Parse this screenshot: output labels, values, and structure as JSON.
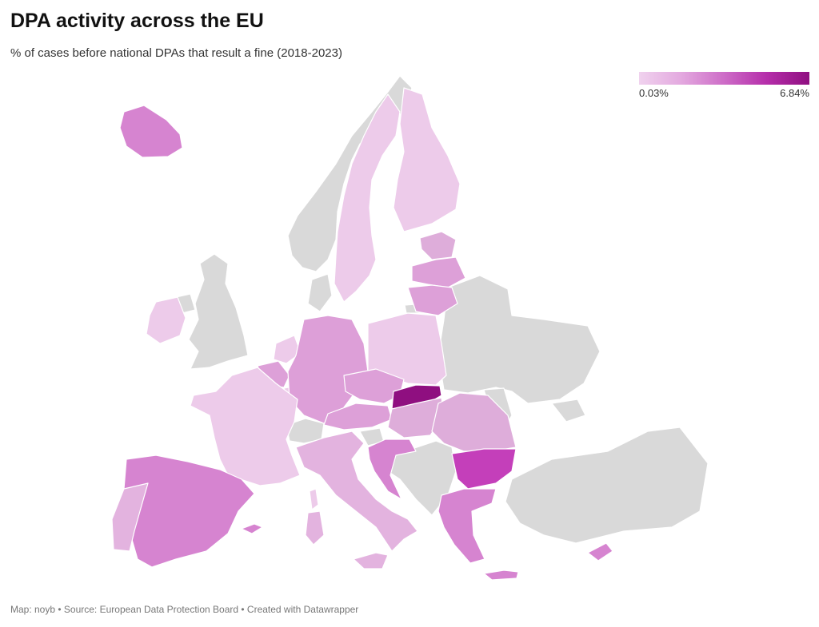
{
  "title": "DPA activity across the EU",
  "subtitle": "% of cases before national DPAs that result a fine (2018-2023)",
  "legend": {
    "min_label": "0.03%",
    "max_label": "6.84%",
    "min_value": 0.03,
    "max_value": 6.84,
    "gradient_colors": [
      "#f0d2ee",
      "#e3a8df",
      "#cd6cc7",
      "#b52eaa",
      "#8f0f80"
    ]
  },
  "footer": "Map: noyb • Source: European Data Protection Board • Created with Datawrapper",
  "colors": {
    "no_data": "#d9d9d9",
    "border": "#ffffff"
  }
}
